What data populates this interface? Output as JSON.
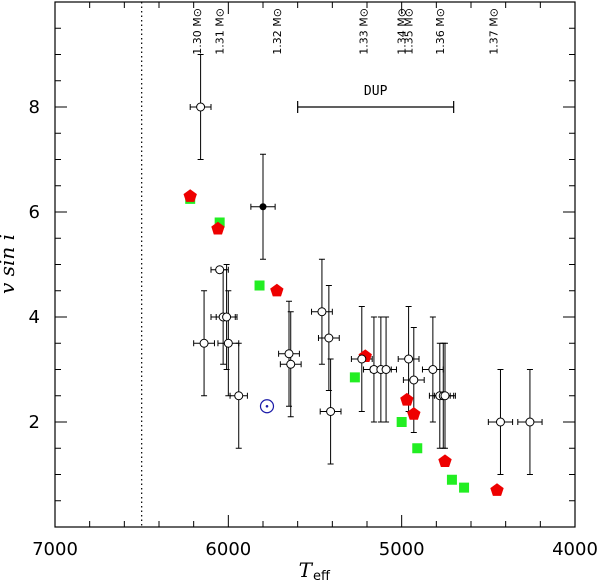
{
  "chart_data": {
    "type": "scatter",
    "xlabel": "T",
    "xlabel_sub": "eff",
    "ylabel": "v sin i",
    "xlim": [
      7000,
      4000
    ],
    "ylim": [
      0,
      10
    ],
    "x_ticks": [
      7000,
      6000,
      5000,
      4000
    ],
    "x_tick_labels": [
      "7000",
      "6000",
      "5000",
      "4000"
    ],
    "y_ticks": [
      2,
      4,
      6,
      8
    ],
    "y_tick_labels": [
      "2",
      "4",
      "6",
      "8"
    ],
    "x_minor_step": 200,
    "y_minor_step": 0.5,
    "instability_strip_teff": 6500,
    "mass_track_labels": [
      {
        "teff": 6180,
        "label": "1.30 M⊙"
      },
      {
        "teff": 6050,
        "label": "1.31 M⊙"
      },
      {
        "teff": 5720,
        "label": "1.32 M⊙"
      },
      {
        "teff": 5220,
        "label": "1.33 M⊙"
      },
      {
        "teff": 5000,
        "label": "1.34 M⊙"
      },
      {
        "teff": 4960,
        "label": "1.35 M⊙"
      },
      {
        "teff": 4780,
        "label": "1.36 M⊙"
      },
      {
        "teff": 4470,
        "label": "1.37 M⊙"
      }
    ],
    "dup": {
      "label": "DUP",
      "teff_start": 5600,
      "teff_end": 4700,
      "y": 8
    },
    "sun": {
      "teff": 5777,
      "vsini": 2.3
    },
    "observed_open": [
      {
        "teff": 6160,
        "vsini": 8.0,
        "xerr": 60,
        "yerr": 1.0
      },
      {
        "teff": 6140,
        "vsini": 3.5,
        "xerr": 60,
        "yerr": 1.0
      },
      {
        "teff": 6050,
        "vsini": 4.9,
        "xerr": 50,
        "yerr": 0.0
      },
      {
        "teff": 6030,
        "vsini": 4.0,
        "xerr": 70,
        "yerr": 0.9
      },
      {
        "teff": 6010,
        "vsini": 4.0,
        "xerr": 60,
        "yerr": 1.0
      },
      {
        "teff": 6000,
        "vsini": 3.5,
        "xerr": 60,
        "yerr": 1.0
      },
      {
        "teff": 5940,
        "vsini": 2.5,
        "xerr": 50,
        "yerr": 1.0
      },
      {
        "teff": 5650,
        "vsini": 3.3,
        "xerr": 60,
        "yerr": 1.0
      },
      {
        "teff": 5640,
        "vsini": 3.1,
        "xerr": 60,
        "yerr": 1.0
      },
      {
        "teff": 5460,
        "vsini": 4.1,
        "xerr": 60,
        "yerr": 1.0
      },
      {
        "teff": 5420,
        "vsini": 3.6,
        "xerr": 60,
        "yerr": 1.0
      },
      {
        "teff": 5410,
        "vsini": 2.2,
        "xerr": 60,
        "yerr": 1.0
      },
      {
        "teff": 5230,
        "vsini": 3.2,
        "xerr": 60,
        "yerr": 1.0
      },
      {
        "teff": 5160,
        "vsini": 3.0,
        "xerr": 60,
        "yerr": 1.0
      },
      {
        "teff": 5120,
        "vsini": 3.0,
        "xerr": 60,
        "yerr": 1.0
      },
      {
        "teff": 5090,
        "vsini": 3.0,
        "xerr": 60,
        "yerr": 1.0
      },
      {
        "teff": 4960,
        "vsini": 3.2,
        "xerr": 60,
        "yerr": 1.0
      },
      {
        "teff": 4930,
        "vsini": 2.8,
        "xerr": 60,
        "yerr": 1.0
      },
      {
        "teff": 4820,
        "vsini": 3.0,
        "xerr": 60,
        "yerr": 1.0
      },
      {
        "teff": 4780,
        "vsini": 2.5,
        "xerr": 60,
        "yerr": 1.0
      },
      {
        "teff": 4760,
        "vsini": 2.5,
        "xerr": 60,
        "yerr": 1.0
      },
      {
        "teff": 4750,
        "vsini": 2.5,
        "xerr": 60,
        "yerr": 1.0
      },
      {
        "teff": 4430,
        "vsini": 2.0,
        "xerr": 70,
        "yerr": 1.0
      },
      {
        "teff": 4260,
        "vsini": 2.0,
        "xerr": 70,
        "yerr": 1.0
      }
    ],
    "observed_filled": [
      {
        "teff": 5800,
        "vsini": 6.1,
        "xerr": 70,
        "yerr": 1.0
      }
    ],
    "model_green_squares": [
      {
        "teff": 6220,
        "vsini": 6.25
      },
      {
        "teff": 6050,
        "vsini": 5.8
      },
      {
        "teff": 5820,
        "vsini": 4.6
      },
      {
        "teff": 5270,
        "vsini": 2.85
      },
      {
        "teff": 5000,
        "vsini": 2.0
      },
      {
        "teff": 4910,
        "vsini": 1.5
      },
      {
        "teff": 4710,
        "vsini": 0.9
      },
      {
        "teff": 4640,
        "vsini": 0.75
      }
    ],
    "model_red_pentagons": [
      {
        "teff": 6220,
        "vsini": 6.3
      },
      {
        "teff": 6060,
        "vsini": 5.68
      },
      {
        "teff": 5720,
        "vsini": 4.5
      },
      {
        "teff": 5210,
        "vsini": 3.25
      },
      {
        "teff": 4970,
        "vsini": 2.42
      },
      {
        "teff": 4930,
        "vsini": 2.15
      },
      {
        "teff": 4750,
        "vsini": 1.25
      },
      {
        "teff": 4450,
        "vsini": 0.7
      }
    ],
    "colors": {
      "axis": "#000000",
      "green": "#22ee22",
      "red": "#ee0000",
      "sun": "#1a1aa8"
    }
  }
}
